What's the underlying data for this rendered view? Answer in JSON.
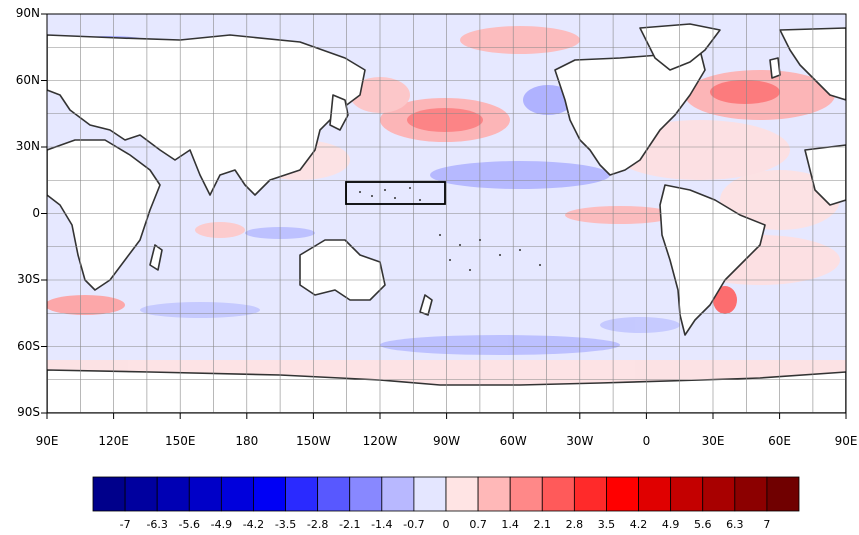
{
  "map": {
    "lat_labels": [
      "90N",
      "60N",
      "30N",
      "0",
      "30S",
      "60S",
      "90S"
    ],
    "lon_labels": [
      "90E",
      "120E",
      "150E",
      "180",
      "150W",
      "120W",
      "90W",
      "60W",
      "30W",
      "0",
      "30E",
      "60E",
      "90E"
    ]
  },
  "colorbar": {
    "levels": [
      "-7",
      "-6.3",
      "-5.6",
      "-4.9",
      "-4.2",
      "-3.5",
      "-2.8",
      "-2.1",
      "-1.4",
      "-0.7",
      "0",
      "0.7",
      "1.4",
      "2.1",
      "2.8",
      "3.5",
      "4.2",
      "4.9",
      "5.6",
      "6.3",
      "7"
    ],
    "colors": [
      "#00008b",
      "#00009f",
      "#0000b4",
      "#0000c8",
      "#0000dc",
      "#0000f5",
      "#2a2aff",
      "#5858ff",
      "#8888ff",
      "#b8b8ff",
      "#e4e6ff",
      "#ffe4e4",
      "#ffb8b8",
      "#ff8888",
      "#ff5a5a",
      "#ff2a2a",
      "#ff0000",
      "#e00000",
      "#c40000",
      "#a80000",
      "#8c0000",
      "#700000"
    ]
  },
  "colors": {
    "land": "#ffffff",
    "ocean_base": "#e6e8ff",
    "coast": "#333333",
    "grid": "#888888",
    "box": "#000000"
  }
}
